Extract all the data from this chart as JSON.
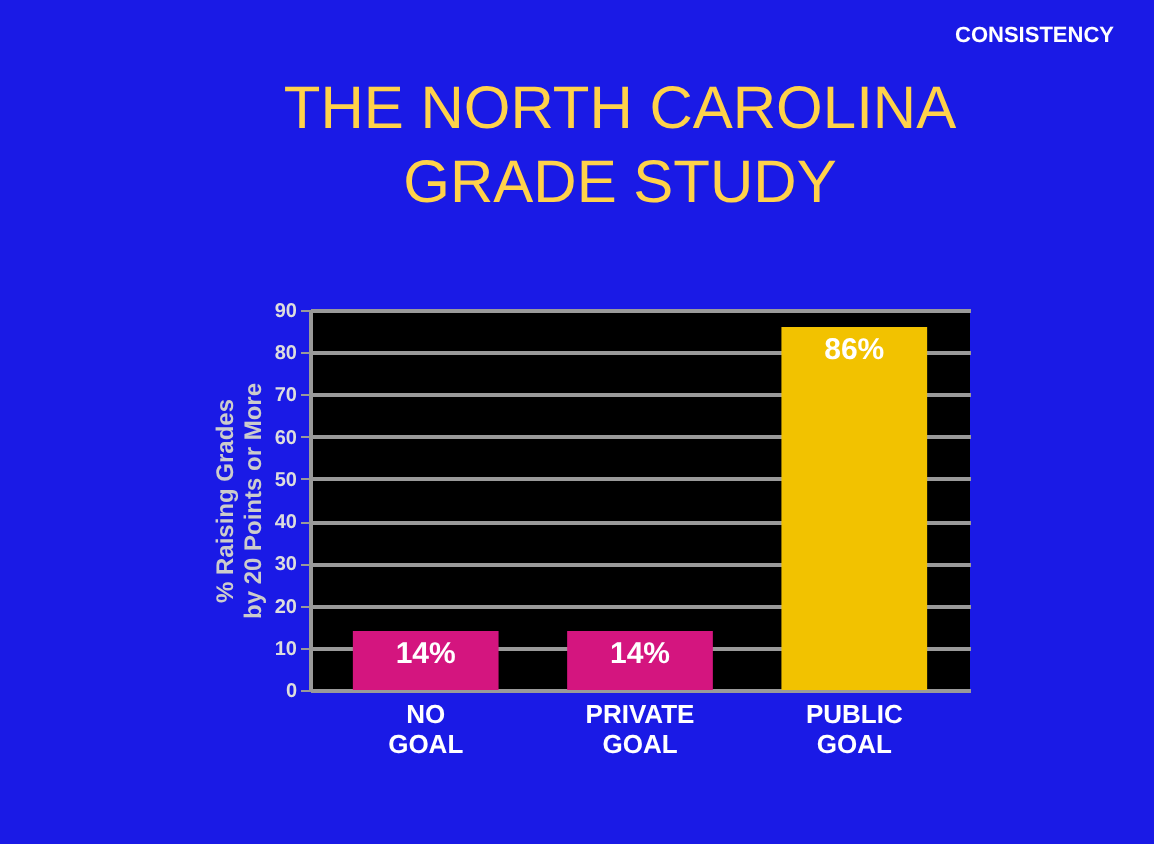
{
  "chart_data": {
    "type": "bar",
    "title": "THE NORTH CAROLINA GRADE STUDY",
    "annotations": [
      "CONSISTENCY"
    ],
    "ylabel": "% Raising Grades by 20 Points or More",
    "categories": [
      "NO GOAL",
      "PRIVATE GOAL",
      "PUBLIC GOAL"
    ],
    "values": [
      14,
      14,
      86
    ],
    "colors": [
      "#d4157f",
      "#d4157f",
      "#f2c200"
    ],
    "value_labels": [
      "14%",
      "14%",
      "86%"
    ],
    "ylim": [
      0,
      90
    ],
    "yticks": [
      0,
      10,
      20,
      30,
      40,
      50,
      60,
      70,
      80,
      90
    ],
    "grid": "y"
  }
}
